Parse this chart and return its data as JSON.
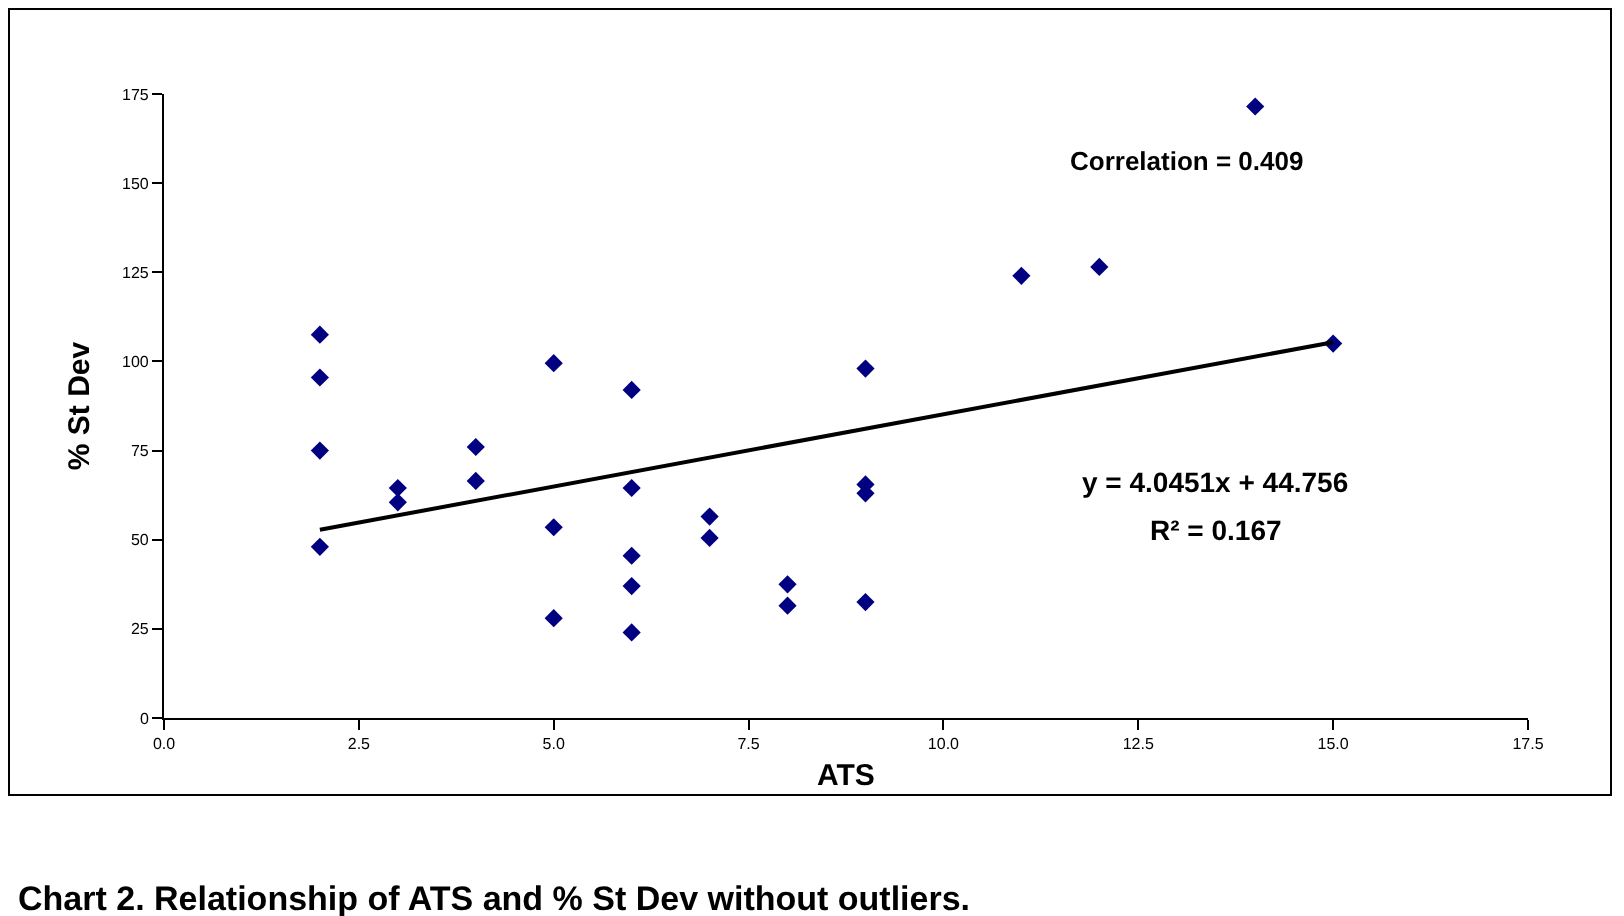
{
  "chart_data": {
    "type": "scatter",
    "title": "Chart 2. Relationship of ATS and % St Dev without outliers.",
    "xlabel": "ATS",
    "ylabel": "% St Dev",
    "xlim": [
      0,
      17.5
    ],
    "xticks": [
      {
        "value": 0,
        "label": "0.0"
      },
      {
        "value": 2.5,
        "label": "2.5"
      },
      {
        "value": 5,
        "label": "5.0"
      },
      {
        "value": 7.5,
        "label": "7.5"
      },
      {
        "value": 10,
        "label": "10.0"
      },
      {
        "value": 12.5,
        "label": "12.5"
      },
      {
        "value": 15,
        "label": "15.0"
      },
      {
        "value": 17.5,
        "label": "17.5"
      }
    ],
    "ylim": [
      0,
      175
    ],
    "yticks": [
      0,
      25,
      50,
      75,
      100,
      125,
      150,
      175
    ],
    "grid": false,
    "marker": "diamond",
    "series": [
      {
        "color": "#000080",
        "x": [
          2,
          2,
          2,
          2,
          3,
          3,
          4,
          4,
          5,
          5,
          5,
          6,
          6,
          6,
          6,
          6,
          7,
          7,
          8,
          8,
          9,
          9,
          9,
          9,
          11,
          12,
          14,
          15
        ],
        "values": [
          107.5,
          95.5,
          75,
          48,
          64.5,
          60.5,
          76,
          66.5,
          99.5,
          53.5,
          28,
          92,
          64.5,
          45.5,
          37,
          24,
          56.5,
          50.5,
          37.5,
          31.5,
          98,
          65.5,
          63,
          32.5,
          124,
          126.5,
          171.5,
          105
        ]
      },
      {
        "type": "line",
        "color": "#000000",
        "marker": "none",
        "line_style": "solid",
        "x": [
          2,
          15
        ],
        "values": [
          52.8,
          105.4
        ]
      }
    ],
    "annotations": [
      "Correlation = 0.409",
      "y = 4.0451x + 44.756",
      "R² = 0.167"
    ]
  }
}
